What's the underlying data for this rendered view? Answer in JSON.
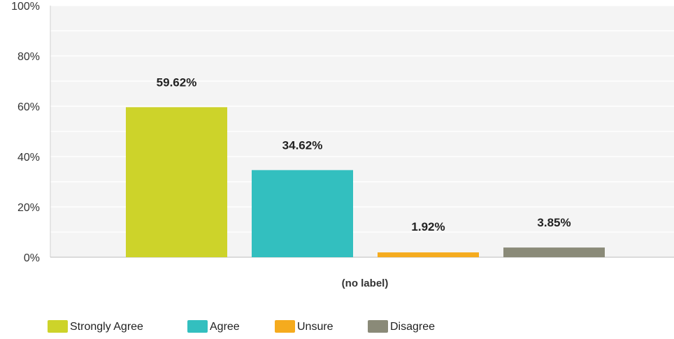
{
  "chart_data": {
    "type": "bar",
    "categories": [
      "(no label)"
    ],
    "series": [
      {
        "name": "Strongly Agree",
        "values": [
          59.62
        ],
        "label": "59.62%",
        "color": "#cdd32a"
      },
      {
        "name": "Agree",
        "values": [
          34.62
        ],
        "label": "34.62%",
        "color": "#33bfbf"
      },
      {
        "name": "Unsure",
        "values": [
          1.92
        ],
        "label": "1.92%",
        "color": "#f5ab1e"
      },
      {
        "name": "Disagree",
        "values": [
          3.85
        ],
        "label": "3.85%",
        "color": "#8a8a78"
      }
    ],
    "ylim": [
      0,
      100
    ],
    "yticks": [
      "0%",
      "20%",
      "40%",
      "60%",
      "80%",
      "100%"
    ],
    "ytick_values": [
      0,
      20,
      40,
      60,
      80,
      100
    ],
    "grid": true,
    "legend_position": "bottom-left"
  }
}
